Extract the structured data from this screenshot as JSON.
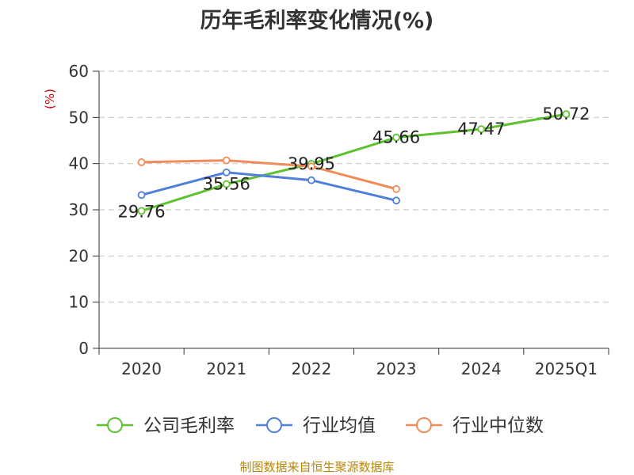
{
  "chart_data": {
    "type": "line",
    "title": "历年毛利率变化情况(%)",
    "ylabel": "(%)",
    "xlabel": "",
    "categories": [
      "2020",
      "2021",
      "2022",
      "2023",
      "2024",
      "2025Q1"
    ],
    "ylim": [
      0,
      60
    ],
    "yticks": [
      "0",
      "10",
      "20",
      "30",
      "40",
      "50",
      "60"
    ],
    "grid": true,
    "legend_position": "bottom",
    "series": [
      {
        "name": "公司毛利率",
        "color": "#5fc030",
        "values": [
          29.76,
          35.56,
          39.95,
          45.66,
          47.47,
          50.72
        ],
        "labels": [
          "29.76",
          "35.56",
          "39.95",
          "45.66",
          "47.47",
          "50.72"
        ]
      },
      {
        "name": "行业均值",
        "color": "#4f7fd8",
        "values": [
          33.2,
          38.1,
          36.4,
          32.0,
          null,
          null
        ]
      },
      {
        "name": "行业中位数",
        "color": "#f08c5a",
        "values": [
          40.3,
          40.7,
          39.4,
          34.5,
          null,
          null
        ]
      }
    ]
  },
  "footer": {
    "source": "制图数据来自恒生聚源数据库"
  }
}
